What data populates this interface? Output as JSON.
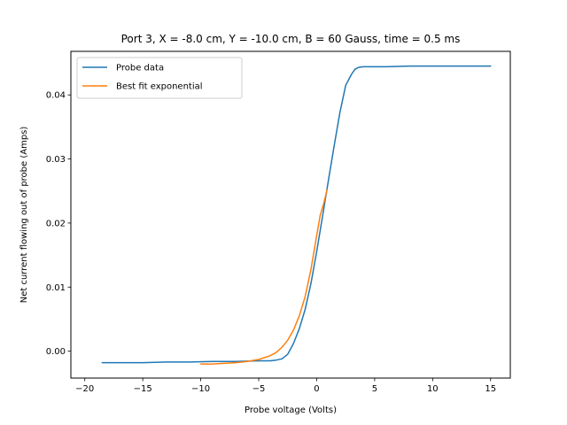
{
  "chart_data": {
    "type": "line",
    "title": "Port 3, X = -8.0 cm, Y = -10.0 cm, B = 60 Gauss, time = 0.5 ms",
    "xlabel": "Probe voltage (Volts)",
    "ylabel": "Net current flowing out of probe (Amps)",
    "xlim": [
      -21.2,
      16.7
    ],
    "ylim": [
      -0.0042,
      0.0468
    ],
    "xticks": [
      -20,
      -15,
      -10,
      -5,
      0,
      5,
      10,
      15
    ],
    "xtick_labels": [
      "−20",
      "−15",
      "−10",
      "−5",
      "0",
      "5",
      "10",
      "15"
    ],
    "yticks": [
      0.0,
      0.01,
      0.02,
      0.03,
      0.04
    ],
    "ytick_labels": [
      "0.00",
      "0.01",
      "0.02",
      "0.03",
      "0.04"
    ],
    "grid": false,
    "legend_position": "top-left",
    "series": [
      {
        "name": "Probe data",
        "color": "#1f77b4",
        "x": [
          -18.5,
          -17,
          -15,
          -13,
          -11,
          -9,
          -7,
          -5,
          -4,
          -3.5,
          -3,
          -2.5,
          -2,
          -1.5,
          -1,
          -0.5,
          0,
          0.5,
          1,
          1.5,
          2,
          2.5,
          3,
          3.3,
          3.6,
          4,
          6,
          8,
          10,
          12,
          14,
          15
        ],
        "y": [
          -0.0018,
          -0.0018,
          -0.0018,
          -0.0017,
          -0.0017,
          -0.0016,
          -0.0016,
          -0.0015,
          -0.0015,
          -0.0014,
          -0.0012,
          -0.0005,
          0.0012,
          0.0035,
          0.0065,
          0.0105,
          0.0155,
          0.021,
          0.0265,
          0.032,
          0.0372,
          0.0415,
          0.0432,
          0.044,
          0.0443,
          0.0444,
          0.0444,
          0.0445,
          0.0445,
          0.0445,
          0.0445,
          0.0445
        ]
      },
      {
        "name": "Best fit exponential",
        "color": "#ff7f0e",
        "x": [
          -10,
          -9,
          -8,
          -7,
          -6,
          -5,
          -4,
          -3.5,
          -3,
          -2.5,
          -2,
          -1.5,
          -1,
          -0.5,
          0,
          0.3,
          0.6,
          0.9
        ],
        "y": [
          -0.002,
          -0.002,
          -0.0019,
          -0.0018,
          -0.0016,
          -0.0013,
          -0.0007,
          -0.0002,
          0.0006,
          0.0017,
          0.0033,
          0.0055,
          0.0085,
          0.0127,
          0.018,
          0.0212,
          0.023,
          0.0252
        ]
      }
    ]
  }
}
